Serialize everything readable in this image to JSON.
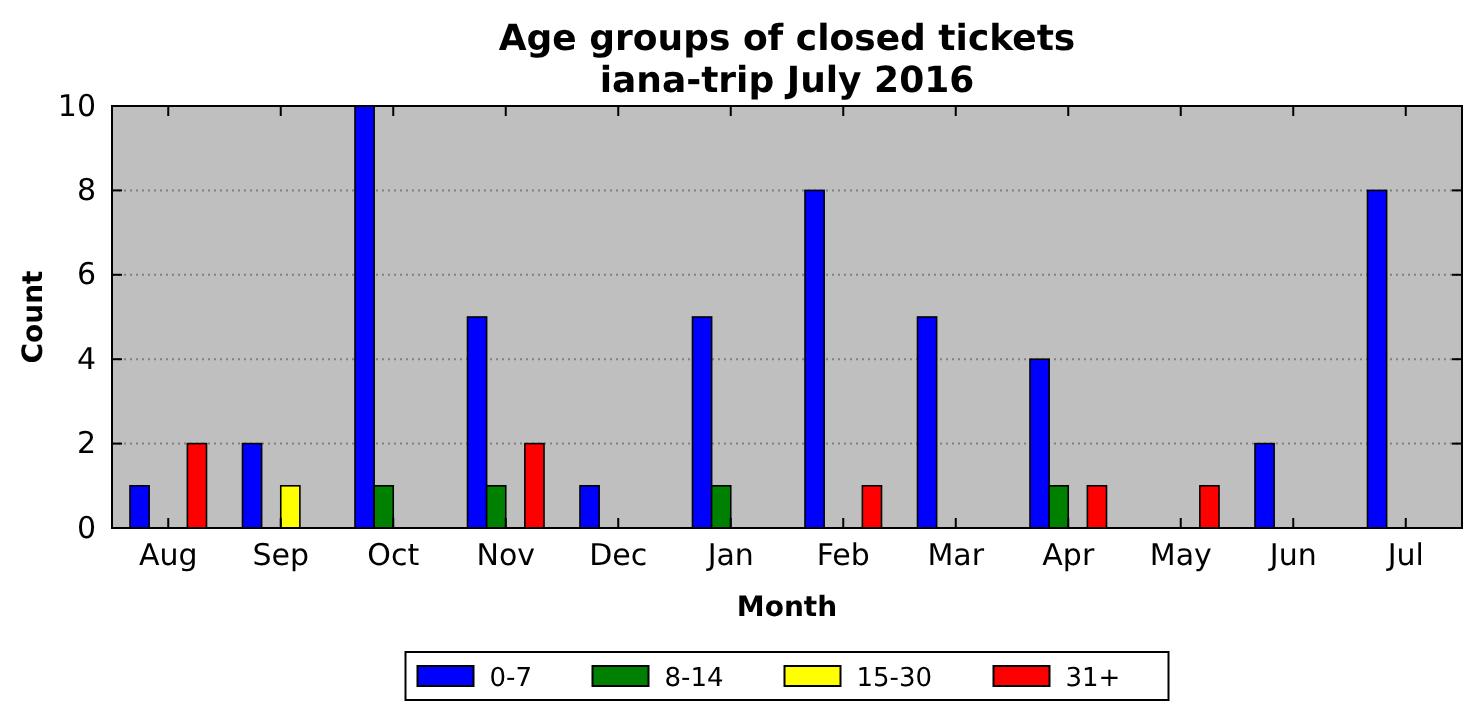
{
  "chart_data": {
    "type": "bar",
    "title": "Age groups of closed tickets\niana-trip July 2016",
    "xlabel": "Month",
    "ylabel": "Count",
    "categories": [
      "Aug",
      "Sep",
      "Oct",
      "Nov",
      "Dec",
      "Jan",
      "Feb",
      "Mar",
      "Apr",
      "May",
      "Jun",
      "Jul"
    ],
    "series": [
      {
        "name": "0-7",
        "color": "#0000ff",
        "values": [
          1,
          2,
          10,
          5,
          1,
          5,
          8,
          5,
          4,
          0,
          2,
          8
        ]
      },
      {
        "name": "8-14",
        "color": "#008000",
        "values": [
          0,
          0,
          1,
          1,
          0,
          1,
          0,
          0,
          1,
          0,
          0,
          0
        ]
      },
      {
        "name": "15-30",
        "color": "#ffff00",
        "values": [
          0,
          1,
          0,
          0,
          0,
          0,
          0,
          0,
          0,
          0,
          0,
          0
        ]
      },
      {
        "name": "31+",
        "color": "#ff0000",
        "values": [
          2,
          0,
          0,
          2,
          0,
          0,
          1,
          0,
          1,
          1,
          0,
          0
        ]
      }
    ],
    "ylim": [
      0,
      10
    ],
    "yticks": [
      0,
      2,
      4,
      6,
      8,
      10
    ],
    "grid": "y",
    "legend": "bottom"
  }
}
